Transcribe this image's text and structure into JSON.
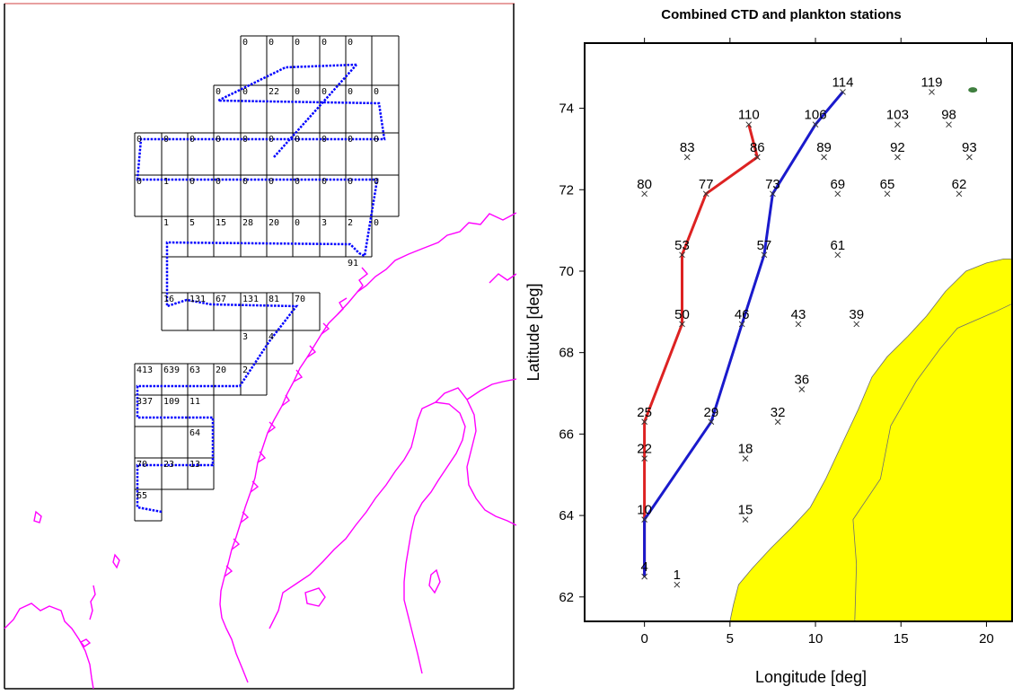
{
  "left_map": {
    "grid_counts": [
      [
        "0",
        "0",
        "0",
        "0",
        "0"
      ],
      [
        "0",
        "0",
        "22",
        "0",
        "0",
        "0",
        "0"
      ],
      [
        "0",
        "0",
        "0",
        "0",
        "0",
        "0",
        "0",
        "0",
        "0",
        "0"
      ],
      [
        "0",
        "1",
        "0",
        "0",
        "0",
        "0",
        "0",
        "0",
        "0",
        "0"
      ],
      [
        "1",
        "5",
        "15",
        "28",
        "20",
        "0",
        "3",
        "2",
        "0"
      ],
      [
        "91"
      ],
      [
        "16",
        "131",
        "67",
        "131",
        "81",
        "70"
      ],
      [
        "3",
        "4"
      ],
      [
        "413",
        "639",
        "63",
        "20",
        "2"
      ],
      [
        "337",
        "109",
        "11"
      ],
      [
        "64"
      ],
      [
        "70",
        "23",
        "13"
      ],
      [
        "65"
      ]
    ],
    "colors": {
      "coast": "#ff00ff",
      "track": "#0000ff",
      "grid": "#000000",
      "frame_top": "#e08080"
    }
  },
  "chart_data": {
    "type": "scatter",
    "title": "Combined CTD and plankton stations",
    "xlabel": "Longitude [deg]",
    "ylabel": "Latitude [deg]",
    "xlim": [
      -3.5,
      21.5
    ],
    "ylim": [
      61.4,
      75.6
    ],
    "xticks": [
      "0",
      "5",
      "10",
      "15",
      "20"
    ],
    "yticks": [
      "62",
      "64",
      "66",
      "68",
      "70",
      "72",
      "74"
    ],
    "stations": [
      {
        "label": "1",
        "x": 1.9,
        "y": 62.3
      },
      {
        "label": "4",
        "x": 0.0,
        "y": 62.5
      },
      {
        "label": "10",
        "x": 0.0,
        "y": 63.9
      },
      {
        "label": "15",
        "x": 5.9,
        "y": 63.9
      },
      {
        "label": "18",
        "x": 5.9,
        "y": 65.4
      },
      {
        "label": "22",
        "x": 0.0,
        "y": 65.4
      },
      {
        "label": "25",
        "x": 0.0,
        "y": 66.3
      },
      {
        "label": "29",
        "x": 3.9,
        "y": 66.3
      },
      {
        "label": "32",
        "x": 7.8,
        "y": 66.3
      },
      {
        "label": "36",
        "x": 9.2,
        "y": 67.1
      },
      {
        "label": "39",
        "x": 12.4,
        "y": 68.7
      },
      {
        "label": "43",
        "x": 9.0,
        "y": 68.7
      },
      {
        "label": "46",
        "x": 5.7,
        "y": 68.7
      },
      {
        "label": "50",
        "x": 2.2,
        "y": 68.7
      },
      {
        "label": "53",
        "x": 2.2,
        "y": 70.4
      },
      {
        "label": "57",
        "x": 7.0,
        "y": 70.4
      },
      {
        "label": "61",
        "x": 11.3,
        "y": 70.4
      },
      {
        "label": "62",
        "x": 18.4,
        "y": 71.9
      },
      {
        "label": "65",
        "x": 14.2,
        "y": 71.9
      },
      {
        "label": "69",
        "x": 11.3,
        "y": 71.9
      },
      {
        "label": "73",
        "x": 7.5,
        "y": 71.9
      },
      {
        "label": "77",
        "x": 3.6,
        "y": 71.9
      },
      {
        "label": "80",
        "x": 0.0,
        "y": 71.9
      },
      {
        "label": "83",
        "x": 2.5,
        "y": 72.8
      },
      {
        "label": "86",
        "x": 6.6,
        "y": 72.8
      },
      {
        "label": "89",
        "x": 10.5,
        "y": 72.8
      },
      {
        "label": "92",
        "x": 14.8,
        "y": 72.8
      },
      {
        "label": "93",
        "x": 19.0,
        "y": 72.8
      },
      {
        "label": "98",
        "x": 17.8,
        "y": 73.6
      },
      {
        "label": "103",
        "x": 14.8,
        "y": 73.6
      },
      {
        "label": "106",
        "x": 10.0,
        "y": 73.6
      },
      {
        "label": "110",
        "x": 6.1,
        "y": 73.6
      },
      {
        "label": "114",
        "x": 11.6,
        "y": 74.4
      },
      {
        "label": "119",
        "x": 16.8,
        "y": 74.4
      }
    ],
    "series": [
      {
        "color": "#dd2222",
        "x": [
          0.0,
          0.0,
          0.0,
          0.0,
          2.2,
          2.2,
          3.6,
          6.6,
          6.1
        ],
        "y": [
          62.5,
          63.9,
          65.4,
          66.3,
          68.7,
          70.4,
          71.9,
          72.8,
          73.6
        ]
      },
      {
        "color": "#1a1acc",
        "x": [
          0.0,
          0.0,
          3.9,
          5.7,
          7.0,
          7.5,
          10.0,
          11.6
        ],
        "y": [
          62.5,
          63.9,
          66.3,
          68.7,
          70.4,
          71.9,
          73.6,
          74.4
        ]
      }
    ],
    "colors": {
      "land": "#ffff00",
      "land_outline": "#6e6e6e",
      "island": "#3f7f3f"
    }
  }
}
